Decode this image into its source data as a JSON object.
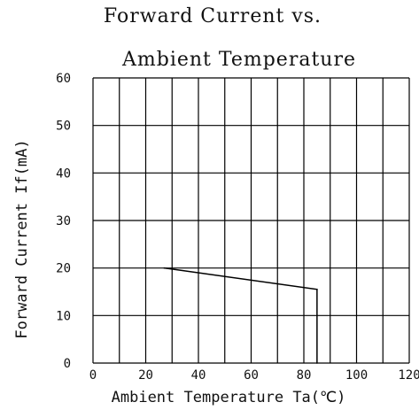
{
  "chart_data": {
    "type": "line",
    "title_line1": "Forward Current vs.",
    "title_line2": "Ambient Temperature",
    "xlabel": "Ambient Temperature Ta(℃)",
    "ylabel": "Forward Current If(mA)",
    "xlim": [
      0,
      120
    ],
    "ylim": [
      0,
      60
    ],
    "x_ticks": [
      "0",
      "20",
      "40",
      "60",
      "80",
      "100",
      "120"
    ],
    "y_ticks": [
      "0",
      "10",
      "20",
      "30",
      "40",
      "50",
      "60"
    ],
    "grid": true,
    "series": [
      {
        "x": [
          27,
          85,
          85
        ],
        "y": [
          20,
          15.5,
          0
        ]
      }
    ],
    "colors": {
      "line": "#000000",
      "grid": "#000000"
    }
  }
}
